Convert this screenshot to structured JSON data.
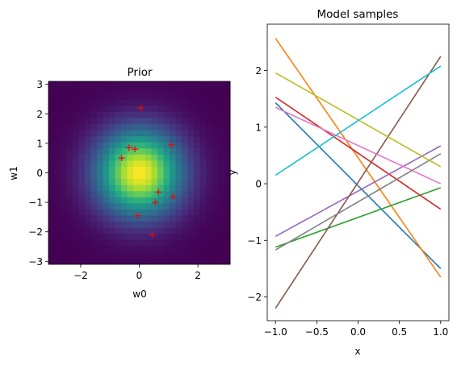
{
  "chart_data": [
    {
      "type": "heatmap",
      "title": "Prior",
      "xlabel": "w0",
      "ylabel": "w1",
      "xlim": [
        -3.1,
        3.1
      ],
      "ylim": [
        -3.1,
        3.1
      ],
      "xticks": [
        -2,
        0,
        2
      ],
      "yticks": [
        -3,
        -2,
        -1,
        0,
        1,
        2,
        3
      ],
      "grid": false,
      "colormap": "viridis",
      "grid_resolution": 30,
      "density": "isotropic gaussian, mean 0, std 1",
      "samples_marker": "+",
      "samples_color": "#ff0000",
      "samples": [
        {
          "x": 0.05,
          "y": 2.2
        },
        {
          "x": -0.35,
          "y": 0.85
        },
        {
          "x": -0.15,
          "y": 0.8
        },
        {
          "x": 1.1,
          "y": 0.95
        },
        {
          "x": -0.6,
          "y": 0.5
        },
        {
          "x": 0.65,
          "y": -0.65
        },
        {
          "x": 1.15,
          "y": -0.8
        },
        {
          "x": 0.55,
          "y": -1.0
        },
        {
          "x": -0.05,
          "y": -1.45
        },
        {
          "x": 0.45,
          "y": -2.1
        }
      ]
    },
    {
      "type": "line",
      "title": "Model samples",
      "xlabel": "x",
      "ylabel": "y",
      "xlim": [
        -1.1,
        1.1
      ],
      "ylim": [
        -2.42,
        2.82
      ],
      "xticks": [
        -1.0,
        -0.5,
        0.0,
        0.5,
        1.0
      ],
      "xtick_labels": [
        "−1.0",
        "−0.5",
        "0.0",
        "0.5",
        "1.0"
      ],
      "yticks": [
        -2,
        -1,
        0,
        1,
        2
      ],
      "ytick_labels": [
        "−2",
        "−1",
        "0",
        "1",
        "2"
      ],
      "grid": false,
      "legend": "none",
      "series": [
        {
          "color": "#1f77b4",
          "x": [
            -1.0,
            1.0
          ],
          "values": [
            1.43,
            -1.5
          ]
        },
        {
          "color": "#ff7f0e",
          "x": [
            -1.0,
            1.0
          ],
          "values": [
            2.57,
            -1.65
          ]
        },
        {
          "color": "#2ca02c",
          "x": [
            -1.0,
            1.0
          ],
          "values": [
            -1.12,
            -0.07
          ]
        },
        {
          "color": "#d62728",
          "x": [
            -1.0,
            1.0
          ],
          "values": [
            1.53,
            -0.45
          ]
        },
        {
          "color": "#9467bd",
          "x": [
            -1.0,
            1.0
          ],
          "values": [
            -0.93,
            0.67
          ]
        },
        {
          "color": "#8c564b",
          "x": [
            -1.0,
            1.0
          ],
          "values": [
            -2.2,
            2.25
          ]
        },
        {
          "color": "#e377c2",
          "x": [
            -1.0,
            1.0
          ],
          "values": [
            1.35,
            0.0
          ]
        },
        {
          "color": "#7f7f7f",
          "x": [
            -1.0,
            1.0
          ],
          "values": [
            -1.17,
            0.53
          ]
        },
        {
          "color": "#bcbd22",
          "x": [
            -1.0,
            1.0
          ],
          "values": [
            1.96,
            0.3
          ]
        },
        {
          "color": "#17becf",
          "x": [
            -1.0,
            1.0
          ],
          "values": [
            0.15,
            2.08
          ]
        }
      ]
    }
  ]
}
